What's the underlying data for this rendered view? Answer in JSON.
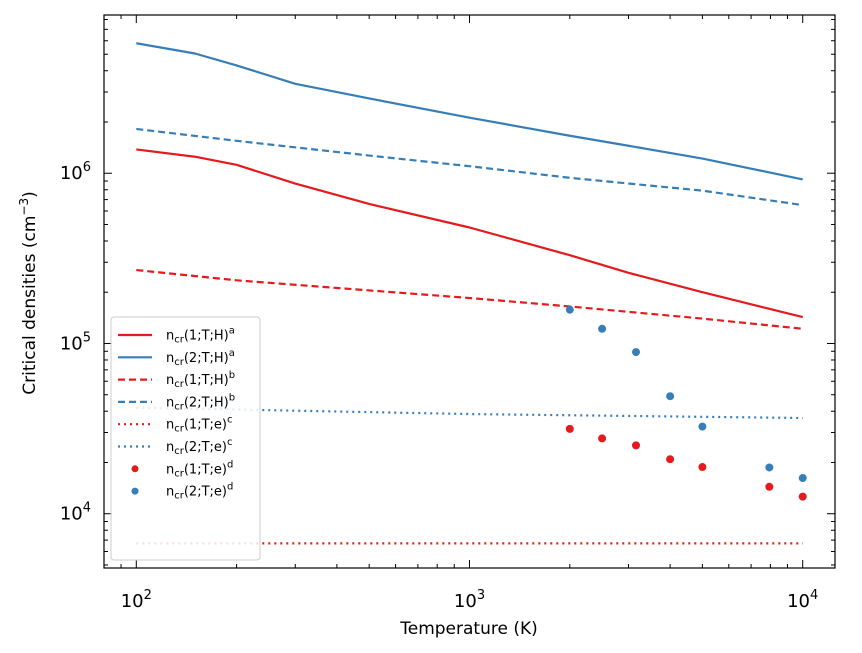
{
  "chart_data": {
    "type": "line",
    "xscale": "log",
    "yscale": "log",
    "xlim": [
      80,
      12500
    ],
    "ylim": [
      4800,
      8500000
    ],
    "xlabel": "Temperature (K)",
    "ylabel": {
      "base": "Critical densities (cm",
      "sup": "−3",
      "close": ")"
    },
    "xticks": [
      {
        "value": 100,
        "base": "10",
        "exp": "2"
      },
      {
        "value": 1000,
        "base": "10",
        "exp": "3"
      },
      {
        "value": 10000,
        "base": "10",
        "exp": "4"
      }
    ],
    "yticks": [
      {
        "value": 10000,
        "base": "10",
        "exp": "4"
      },
      {
        "value": 100000,
        "base": "10",
        "exp": "5"
      },
      {
        "value": 1000000,
        "base": "10",
        "exp": "6"
      }
    ],
    "legend_position": "lower-left",
    "series": [
      {
        "name": "ncr(1;T;H)a",
        "label": {
          "pre": "n",
          "sub": "cr",
          "mid": "(1;T;H)",
          "sup": "a"
        },
        "kind": "line",
        "style": "solid",
        "color": "#e41a1c",
        "x": [
          100,
          150,
          200,
          300,
          500,
          1000,
          2000,
          3000,
          5000,
          10000
        ],
        "y": [
          1380000,
          1250000,
          1120000,
          870000,
          660000,
          480000,
          330000,
          260000,
          200000,
          143000
        ]
      },
      {
        "name": "ncr(2;T;H)a",
        "label": {
          "pre": "n",
          "sub": "cr",
          "mid": "(2;T;H)",
          "sup": "a"
        },
        "kind": "line",
        "style": "solid",
        "color": "#377eb8",
        "x": [
          100,
          150,
          200,
          300,
          500,
          1000,
          2000,
          3000,
          5000,
          10000
        ],
        "y": [
          5800000,
          5050000,
          4300000,
          3350000,
          2750000,
          2120000,
          1660000,
          1450000,
          1220000,
          920000
        ]
      },
      {
        "name": "ncr(1;T;H)b",
        "label": {
          "pre": "n",
          "sub": "cr",
          "mid": "(1;T;H)",
          "sup": "b"
        },
        "kind": "line",
        "style": "dashed",
        "color": "#e41a1c",
        "x": [
          100,
          200,
          500,
          1000,
          2000,
          5000,
          10000
        ],
        "y": [
          270000,
          235000,
          205000,
          185000,
          165000,
          140000,
          122000
        ]
      },
      {
        "name": "ncr(2;T;H)b",
        "label": {
          "pre": "n",
          "sub": "cr",
          "mid": "(2;T;H)",
          "sup": "b"
        },
        "kind": "line",
        "style": "dashed",
        "color": "#377eb8",
        "x": [
          100,
          200,
          500,
          1000,
          2000,
          5000,
          10000
        ],
        "y": [
          1820000,
          1550000,
          1270000,
          1100000,
          940000,
          790000,
          650000
        ]
      },
      {
        "name": "ncr(1;T;e)c",
        "label": {
          "pre": "n",
          "sub": "cr",
          "mid": "(1;T;e)",
          "sup": "c"
        },
        "kind": "line",
        "style": "dotted",
        "color": "#e41a1c",
        "x": [
          100,
          10000
        ],
        "y": [
          6700,
          6700
        ]
      },
      {
        "name": "ncr(2;T;e)c",
        "label": {
          "pre": "n",
          "sub": "cr",
          "mid": "(2;T;e)",
          "sup": "c"
        },
        "kind": "line",
        "style": "dotted",
        "color": "#377eb8",
        "x": [
          100,
          1000,
          10000
        ],
        "y": [
          42000,
          38500,
          36500
        ]
      },
      {
        "name": "ncr(1;T;e)d",
        "label": {
          "pre": "n",
          "sub": "cr",
          "mid": "(1;T;e)",
          "sup": "d"
        },
        "kind": "scatter",
        "color": "#e41a1c",
        "x": [
          2000,
          2500,
          3160,
          4000,
          5000,
          7940,
          10000
        ],
        "y": [
          31500,
          27700,
          25200,
          20900,
          18800,
          14400,
          12600
        ]
      },
      {
        "name": "ncr(2;T;e)d",
        "label": {
          "pre": "n",
          "sub": "cr",
          "mid": "(2;T;e)",
          "sup": "d"
        },
        "kind": "scatter",
        "color": "#377eb8",
        "x": [
          2000,
          2500,
          3160,
          4000,
          5000,
          7940,
          10000
        ],
        "y": [
          158000,
          122000,
          89000,
          49000,
          32500,
          18700,
          16200
        ]
      }
    ]
  }
}
